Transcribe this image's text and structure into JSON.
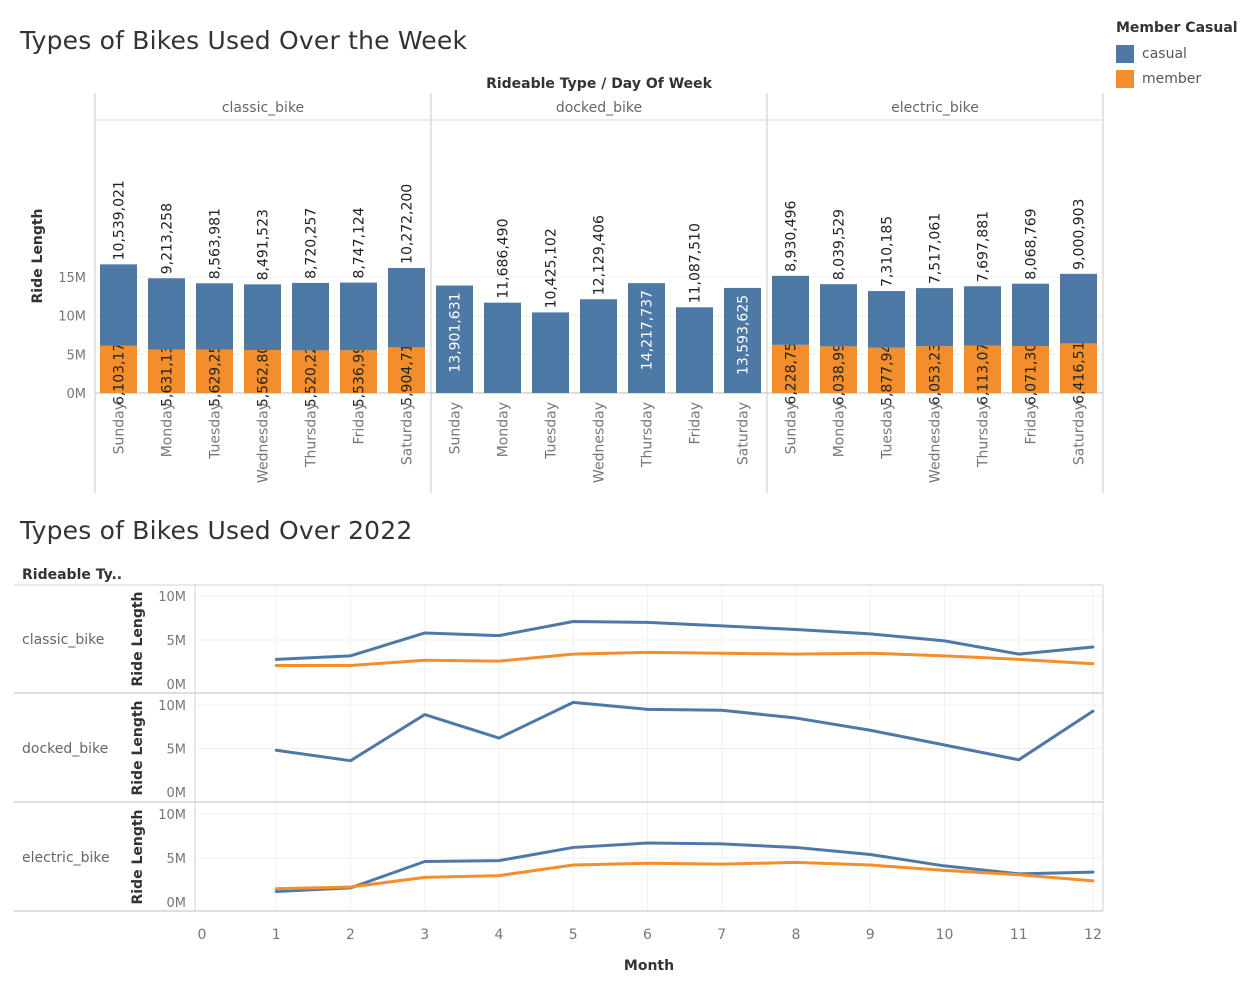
{
  "top": {
    "title": "Types of Bikes Used Over the Week",
    "header": "Rideable Type  /  Day Of Week"
  },
  "bottom": {
    "title": "Types of Bikes Used Over 2022",
    "row_header": "Rideable Ty.."
  },
  "legend": {
    "title": "Member Casual",
    "items": [
      {
        "label": "casual",
        "color": "#4e79a7"
      },
      {
        "label": "member",
        "color": "#f28e2b"
      }
    ]
  },
  "chart_data": [
    {
      "type": "bar",
      "stacked": true,
      "title": "Types of Bikes Used Over the Week",
      "xlabel": "Day Of Week",
      "ylabel": "Ride Length",
      "panel_label": "Rideable Type",
      "yticks": [
        "0M",
        "5M",
        "10M",
        "15M"
      ],
      "ylim": [
        0,
        17500000
      ],
      "panels": [
        "classic_bike",
        "docked_bike",
        "electric_bike"
      ],
      "categories": [
        "Sunday",
        "Monday",
        "Tuesday",
        "Wednesday",
        "Thursday",
        "Friday",
        "Saturday"
      ],
      "series": [
        {
          "name": "casual",
          "color": "#4e79a7",
          "panel_values": {
            "classic_bike": [
              10539021,
              9213258,
              8563981,
              8491523,
              8720257,
              8747124,
              10272200
            ],
            "docked_bike": [
              13901631,
              11686490,
              10425102,
              12129406,
              14217737,
              11087510,
              13593625
            ],
            "electric_bike": [
              8930496,
              8039529,
              7310185,
              7517061,
              7697881,
              8068769,
              9000903
            ]
          },
          "panel_labels": {
            "classic_bike": [
              "10,539,021",
              "9,213,258",
              "8,563,981",
              "8,491,523",
              "8,720,257",
              "8,747,124",
              "10,272,200"
            ],
            "docked_bike": [
              "13,901,631",
              "11,686,490",
              "10,425,102",
              "12,129,406",
              "14,217,737",
              "11,087,510",
              "13,593,625"
            ],
            "electric_bike": [
              "8,930,496",
              "8,039,529",
              "7,310,185",
              "7,517,061",
              "7,697,881",
              "8,068,769",
              "9,000,903"
            ]
          }
        },
        {
          "name": "member",
          "color": "#f28e2b",
          "panel_values": {
            "classic_bike": [
              6103175,
              5631136,
              5629258,
              5562802,
              5520222,
              5536994,
              5904719
            ],
            "docked_bike": [
              0,
              0,
              0,
              0,
              0,
              0,
              0
            ],
            "electric_bike": [
              6228757,
              6038997,
              5877942,
              6053235,
              6113079,
              6071307,
              6416511
            ]
          },
          "panel_labels": {
            "classic_bike": [
              "6,103,175",
              "5,631,136",
              "5,629,258",
              "5,562,802",
              "5,520,222",
              "5,536,994",
              "5,904,719"
            ],
            "docked_bike": [
              "",
              "",
              "",
              "",
              "",
              "",
              ""
            ],
            "electric_bike": [
              "6,228,757",
              "6,038,997",
              "5,877,942",
              "6,053,235",
              "6,113,079",
              "6,071,307",
              "6,416,511"
            ]
          }
        }
      ]
    },
    {
      "type": "line",
      "title": "Types of Bikes Used Over 2022",
      "xlabel": "Month",
      "ylabel": "Ride Length",
      "xticks": [
        "0",
        "1",
        "2",
        "3",
        "4",
        "5",
        "6",
        "7",
        "8",
        "9",
        "10",
        "11",
        "12"
      ],
      "yticks": [
        "0M",
        "5M",
        "10M"
      ],
      "xlim": [
        0,
        12
      ],
      "ylim": [
        0,
        10500000
      ],
      "x": [
        1,
        2,
        3,
        4,
        5,
        6,
        7,
        8,
        9,
        10,
        11,
        12
      ],
      "rows": [
        {
          "label": "classic_bike",
          "series": [
            {
              "name": "casual",
              "color": "#4e79a7",
              "values": [
                2800000,
                3200000,
                5800000,
                5500000,
                7100000,
                7000000,
                6600000,
                6200000,
                5700000,
                4900000,
                3400000,
                4200000
              ]
            },
            {
              "name": "member",
              "color": "#f28e2b",
              "values": [
                2100000,
                2100000,
                2700000,
                2600000,
                3400000,
                3600000,
                3500000,
                3400000,
                3500000,
                3200000,
                2800000,
                2300000
              ]
            }
          ]
        },
        {
          "label": "docked_bike",
          "series": [
            {
              "name": "casual",
              "color": "#4e79a7",
              "values": [
                4800000,
                3600000,
                8900000,
                6200000,
                10300000,
                9500000,
                9400000,
                8500000,
                7100000,
                5400000,
                3700000,
                9300000
              ]
            }
          ]
        },
        {
          "label": "electric_bike",
          "series": [
            {
              "name": "casual",
              "color": "#4e79a7",
              "values": [
                1200000,
                1600000,
                4600000,
                4700000,
                6200000,
                6700000,
                6600000,
                6200000,
                5400000,
                4100000,
                3200000,
                3400000
              ]
            },
            {
              "name": "member",
              "color": "#f28e2b",
              "values": [
                1500000,
                1700000,
                2800000,
                3000000,
                4200000,
                4400000,
                4300000,
                4500000,
                4200000,
                3600000,
                3100000,
                2400000
              ]
            }
          ]
        }
      ]
    }
  ]
}
